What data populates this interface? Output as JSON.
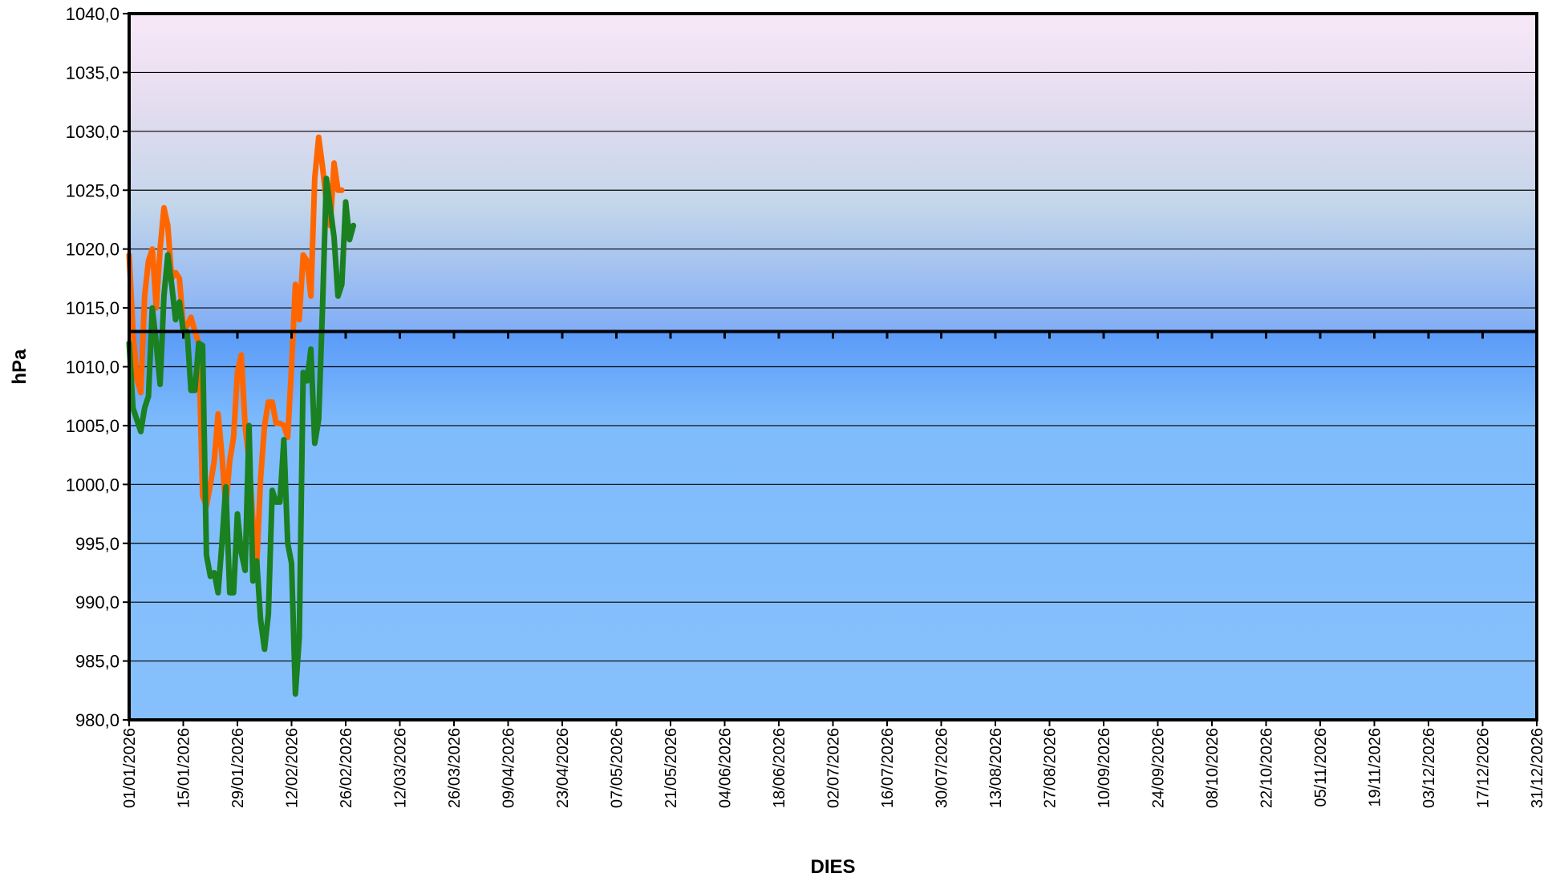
{
  "chart_data": {
    "type": "line",
    "xlabel": "DIES",
    "ylabel": "hPa",
    "ylim": [
      980,
      1040
    ],
    "yticks": [
      "980,0",
      "985,0",
      "990,0",
      "995,0",
      "1000,0",
      "1005,0",
      "1010,0",
      "1015,0",
      "1020,0",
      "1025,0",
      "1030,0",
      "1035,0",
      "1040,0"
    ],
    "xlim": [
      "01/01/2026",
      "31/12/2026"
    ],
    "xticks": [
      "01/01/2026",
      "15/01/2026",
      "29/01/2026",
      "12/02/2026",
      "26/02/2026",
      "12/03/2026",
      "26/03/2026",
      "09/04/2026",
      "23/04/2026",
      "07/05/2026",
      "21/05/2026",
      "04/06/2026",
      "18/06/2026",
      "02/07/2026",
      "16/07/2026",
      "30/07/2026",
      "13/08/2026",
      "27/08/2026",
      "10/09/2026",
      "24/09/2026",
      "08/10/2026",
      "22/10/2026",
      "05/11/2026",
      "19/11/2026",
      "03/12/2026",
      "17/12/2026",
      "31/12/2026"
    ],
    "reference_line": 1013,
    "grid": true,
    "background": "vertical gradient: pink at 1040, lavender, light blue to the 1013 reference line, then solid blue below",
    "series": [
      {
        "color": "#ff6600",
        "points": [
          [
            "01/01/2026",
            1019.5
          ],
          [
            "02/01/2026",
            1013
          ],
          [
            "03/01/2026",
            1009
          ],
          [
            "04/01/2026",
            1007.8
          ],
          [
            "05/01/2026",
            1016
          ],
          [
            "06/01/2026",
            1019
          ],
          [
            "07/01/2026",
            1020
          ],
          [
            "08/01/2026",
            1015
          ],
          [
            "09/01/2026",
            1020
          ],
          [
            "10/01/2026",
            1023.5
          ],
          [
            "11/01/2026",
            1022
          ],
          [
            "12/01/2026",
            1017.5
          ],
          [
            "13/01/2026",
            1018
          ],
          [
            "14/01/2026",
            1017.5
          ],
          [
            "15/01/2026",
            1013.5
          ],
          [
            "16/01/2026",
            1013.5
          ],
          [
            "17/01/2026",
            1014.2
          ],
          [
            "18/01/2026",
            1013
          ],
          [
            "19/01/2026",
            1012
          ],
          [
            "20/01/2026",
            999
          ],
          [
            "21/01/2026",
            998.2
          ],
          [
            "22/01/2026",
            1000
          ],
          [
            "23/01/2026",
            1002
          ],
          [
            "24/01/2026",
            1006
          ],
          [
            "25/01/2026",
            1002.5
          ],
          [
            "26/01/2026",
            998
          ],
          [
            "27/01/2026",
            1002
          ],
          [
            "28/01/2026",
            1004
          ],
          [
            "29/01/2026",
            1009.5
          ],
          [
            "30/01/2026",
            1011
          ],
          [
            "31/01/2026",
            1005
          ],
          [
            "01/02/2026",
            1002
          ],
          [
            "02/02/2026",
            997
          ],
          [
            "03/02/2026",
            993.2
          ],
          [
            "04/02/2026",
            1000.5
          ],
          [
            "05/02/2026",
            1005
          ],
          [
            "06/02/2026",
            1007
          ],
          [
            "07/02/2026",
            1007
          ],
          [
            "08/02/2026",
            1005.2
          ],
          [
            "09/02/2026",
            1005.2
          ],
          [
            "10/02/2026",
            1005
          ],
          [
            "11/02/2026",
            1004
          ],
          [
            "12/02/2026",
            1010
          ],
          [
            "13/02/2026",
            1017
          ],
          [
            "14/02/2026",
            1014
          ],
          [
            "15/02/2026",
            1019.5
          ],
          [
            "16/02/2026",
            1019
          ],
          [
            "17/02/2026",
            1016
          ],
          [
            "18/02/2026",
            1026
          ],
          [
            "19/02/2026",
            1029.5
          ],
          [
            "20/02/2026",
            1027
          ],
          [
            "21/02/2026",
            1024
          ],
          [
            "22/02/2026",
            1022
          ],
          [
            "23/02/2026",
            1027.3
          ],
          [
            "24/02/2026",
            1025
          ],
          [
            "25/02/2026",
            1025
          ]
        ]
      },
      {
        "color": "#1a8020",
        "points": [
          [
            "01/01/2026",
            1012
          ],
          [
            "02/01/2026",
            1006.5
          ],
          [
            "03/01/2026",
            1005.5
          ],
          [
            "04/01/2026",
            1004.5
          ],
          [
            "05/01/2026",
            1006.5
          ],
          [
            "06/01/2026",
            1007.5
          ],
          [
            "07/01/2026",
            1015
          ],
          [
            "08/01/2026",
            1012
          ],
          [
            "09/01/2026",
            1008.5
          ],
          [
            "10/01/2026",
            1016
          ],
          [
            "11/01/2026",
            1019.5
          ],
          [
            "12/01/2026",
            1017
          ],
          [
            "13/01/2026",
            1014
          ],
          [
            "14/01/2026",
            1015.5
          ],
          [
            "15/01/2026",
            1013
          ],
          [
            "16/01/2026",
            1013
          ],
          [
            "17/01/2026",
            1008
          ],
          [
            "18/01/2026",
            1008
          ],
          [
            "19/01/2026",
            1012
          ],
          [
            "20/01/2026",
            1011.8
          ],
          [
            "21/01/2026",
            994
          ],
          [
            "22/01/2026",
            992.2
          ],
          [
            "23/01/2026",
            992.5
          ],
          [
            "24/01/2026",
            990.8
          ],
          [
            "25/01/2026",
            995
          ],
          [
            "26/01/2026",
            999.8
          ],
          [
            "27/01/2026",
            990.8
          ],
          [
            "28/01/2026",
            990.8
          ],
          [
            "29/01/2026",
            997.5
          ],
          [
            "30/01/2026",
            994.2
          ],
          [
            "31/01/2026",
            992.7
          ],
          [
            "01/02/2026",
            1005
          ],
          [
            "02/02/2026",
            991.8
          ],
          [
            "03/02/2026",
            993.5
          ],
          [
            "04/02/2026",
            988.5
          ],
          [
            "05/02/2026",
            986
          ],
          [
            "06/02/2026",
            989
          ],
          [
            "07/02/2026",
            999.5
          ],
          [
            "08/02/2026",
            998.5
          ],
          [
            "09/02/2026",
            998.5
          ],
          [
            "10/02/2026",
            1003.8
          ],
          [
            "11/02/2026",
            995
          ],
          [
            "12/02/2026",
            993.3
          ],
          [
            "13/02/2026",
            982.2
          ],
          [
            "14/02/2026",
            987
          ],
          [
            "15/02/2026",
            1009.5
          ],
          [
            "16/02/2026",
            1008.8
          ],
          [
            "17/02/2026",
            1011.5
          ],
          [
            "18/02/2026",
            1003.5
          ],
          [
            "19/02/2026",
            1005.5
          ],
          [
            "20/02/2026",
            1015
          ],
          [
            "21/02/2026",
            1026
          ],
          [
            "22/02/2026",
            1023.5
          ],
          [
            "23/02/2026",
            1021
          ],
          [
            "24/02/2026",
            1016
          ],
          [
            "25/02/2026",
            1017
          ],
          [
            "26/02/2026",
            1024
          ],
          [
            "27/02/2026",
            1020.8
          ],
          [
            "28/02/2026",
            1022
          ]
        ]
      }
    ]
  }
}
